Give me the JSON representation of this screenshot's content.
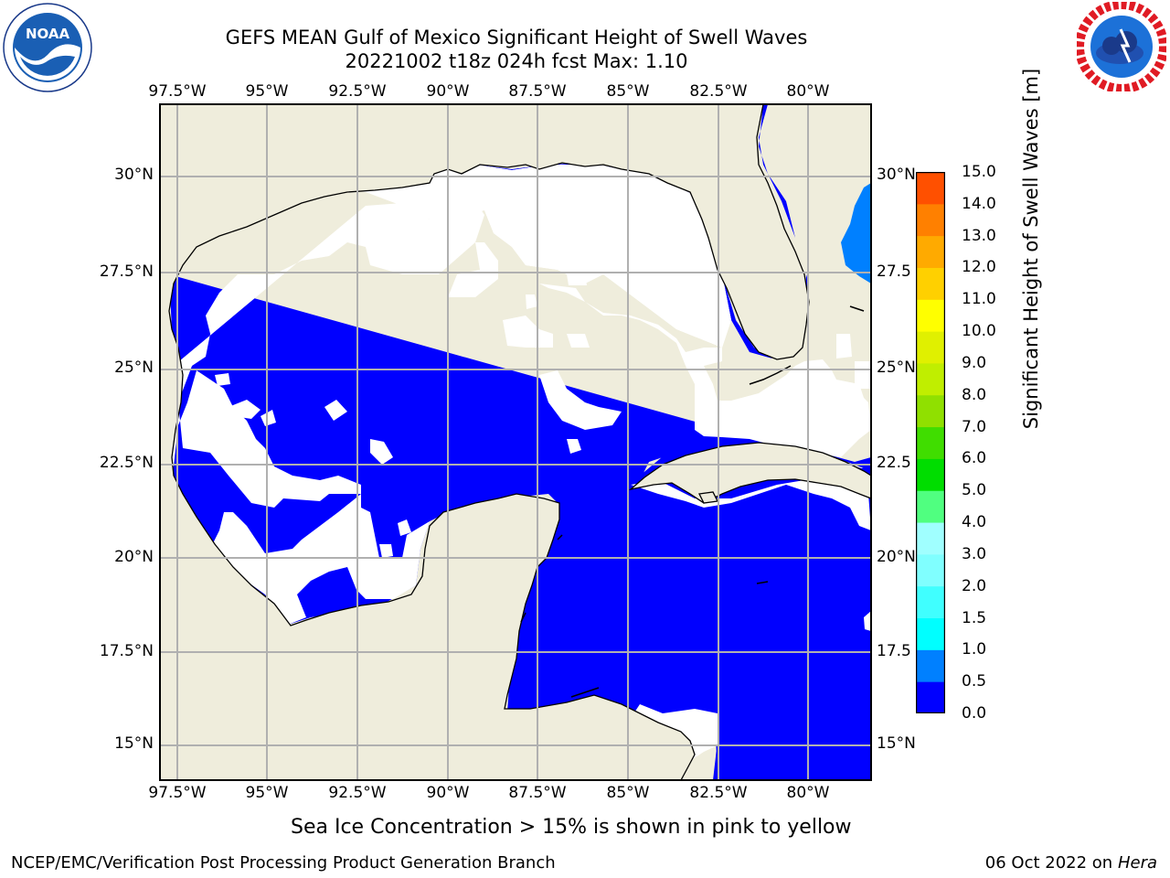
{
  "title": {
    "line1": "GEFS MEAN Gulf of Mexico Significant Height of Swell Waves",
    "line2": "20221002 t18z 024h fcst   Max: 1.10"
  },
  "logos": {
    "left": {
      "name": "noaa-logo",
      "text": "NOAA",
      "ring_text": "NATIONAL OCEANIC AND ATMOSPHERIC ADMINISTRATION · U.S. DEPARTMENT OF COMMERCE"
    },
    "right": {
      "name": "nws-logo",
      "ring_text": "NATIONAL WEATHER SERVICE"
    }
  },
  "map": {
    "lon_labels_top": [
      "97.5°W",
      "95°W",
      "92.5°W",
      "90°W",
      "87.5°W",
      "85°W",
      "82.5°W",
      "80°W"
    ],
    "lon_labels_bottom": [
      "97.5°W",
      "95°W",
      "92.5°W",
      "90°W",
      "87.5°W",
      "85°W",
      "82.5°W",
      "80°W"
    ],
    "lat_labels_left": [
      "30°N",
      "27.5°N",
      "25°N",
      "22.5°N",
      "20°N",
      "17.5°N",
      "15°N"
    ],
    "lat_labels_right": [
      "30°N",
      "27.5",
      "25°N",
      "22.5",
      "20°N",
      "17.5",
      "15°N"
    ],
    "colors": {
      "land": "#efeddc",
      "ocean_low": "#0000ff",
      "ocean_mid": "#0080ff",
      "ocean_cyan": "#00ffff",
      "grid": "#b0b0b0",
      "nodata": "#ffffff"
    }
  },
  "colorbar": {
    "label": "Significant Height of Swell Waves [m]",
    "ticks": [
      "15.0",
      "14.0",
      "13.0",
      "12.0",
      "11.0",
      "10.0",
      "9.0",
      "8.0",
      "7.0",
      "6.0",
      "5.0",
      "4.0",
      "3.0",
      "2.0",
      "1.5",
      "1.0",
      "0.5",
      "0.0"
    ],
    "colors_bottom_to_top": [
      "#0000ff",
      "#0080ff",
      "#00ffff",
      "#40ffff",
      "#80ffff",
      "#a0ffff",
      "#50ff80",
      "#00dd00",
      "#40dd00",
      "#90e000",
      "#c0ee00",
      "#e0f000",
      "#ffff00",
      "#ffd000",
      "#ffaa00",
      "#ff8000",
      "#ff5000",
      "#ff2000",
      "#ff0000"
    ]
  },
  "note": "Sea Ice Concentration > 15% is shown in pink to yellow",
  "footer": {
    "left": "NCEP/EMC/Verification Post Processing Product Generation Branch",
    "right_date": "06 Oct 2022 on ",
    "right_machine": "Hera"
  }
}
